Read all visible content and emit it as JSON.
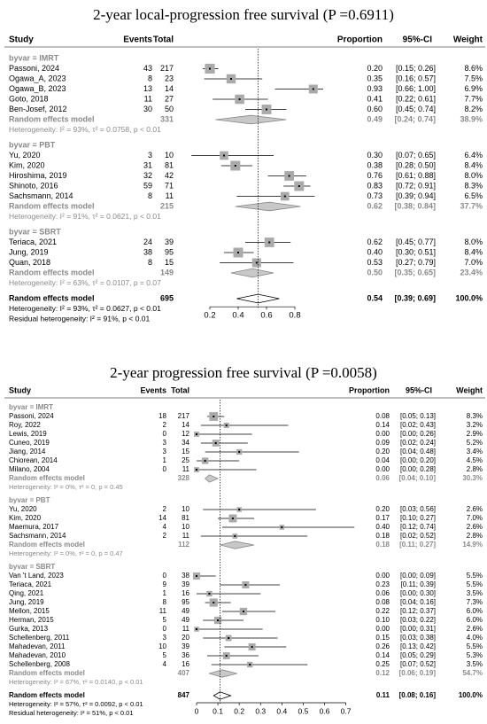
{
  "chart_data": [
    {
      "type": "forest",
      "title": "2-year local-progression free survival (P =0.6911)",
      "columns": [
        "Study",
        "Events",
        "Total",
        "Proportion",
        "95%-CI",
        "Weight"
      ],
      "xlim": [
        0,
        1
      ],
      "xticks": [
        0.2,
        0.4,
        0.6,
        0.8
      ],
      "groups": [
        {
          "label": "byvar = IMRT",
          "studies": [
            {
              "study": "Passoni, 2024",
              "events": 43,
              "total": 217,
              "p": 0.2,
              "p_label": "0.20",
              "lo": 0.15,
              "hi": 0.26,
              "ci_label": "[0.15; 0.26]",
              "weight": 8.6,
              "weight_label": "8.6%"
            },
            {
              "study": "Ogawa_A, 2023",
              "events": 8,
              "total": 23,
              "p": 0.35,
              "p_label": "0.35",
              "lo": 0.16,
              "hi": 0.57,
              "ci_label": "[0.16; 0.57]",
              "weight": 7.5,
              "weight_label": "7.5%"
            },
            {
              "study": "Ogawa_B, 2023",
              "events": 13,
              "total": 14,
              "p": 0.93,
              "p_label": "0.93",
              "lo": 0.66,
              "hi": 1.0,
              "ci_label": "[0.66; 1.00]",
              "weight": 6.9,
              "weight_label": "6.9%"
            },
            {
              "study": "Goto, 2018",
              "events": 11,
              "total": 27,
              "p": 0.41,
              "p_label": "0.41",
              "lo": 0.22,
              "hi": 0.61,
              "ci_label": "[0.22; 0.61]",
              "weight": 7.7,
              "weight_label": "7.7%"
            },
            {
              "study": "Ben-Josef, 2012",
              "events": 30,
              "total": 50,
              "p": 0.6,
              "p_label": "0.60",
              "lo": 0.45,
              "hi": 0.74,
              "ci_label": "[0.45; 0.74]",
              "weight": 8.2,
              "weight_label": "8.2%"
            }
          ],
          "summary": {
            "name": "Random effects model",
            "total": 331,
            "p": 0.49,
            "p_label": "0.49",
            "lo": 0.24,
            "hi": 0.74,
            "ci_label": "[0.24; 0.74]",
            "weight": 38.9,
            "weight_label": "38.9%"
          },
          "heterogeneity": "Heterogeneity: I² = 93%, τ² = 0.0758, p < 0.01"
        },
        {
          "label": "byvar = PBT",
          "studies": [
            {
              "study": "Yu, 2020",
              "events": 3,
              "total": 10,
              "p": 0.3,
              "p_label": "0.30",
              "lo": 0.07,
              "hi": 0.65,
              "ci_label": "[0.07; 0.65]",
              "weight": 6.4,
              "weight_label": "6.4%"
            },
            {
              "study": "Kim, 2020",
              "events": 31,
              "total": 81,
              "p": 0.38,
              "p_label": "0.38",
              "lo": 0.28,
              "hi": 0.5,
              "ci_label": "[0.28; 0.50]",
              "weight": 8.4,
              "weight_label": "8.4%"
            },
            {
              "study": "Hiroshima, 2019",
              "events": 32,
              "total": 42,
              "p": 0.76,
              "p_label": "0.76",
              "lo": 0.61,
              "hi": 0.88,
              "ci_label": "[0.61; 0.88]",
              "weight": 8.0,
              "weight_label": "8.0%"
            },
            {
              "study": "Shinoto, 2016",
              "events": 59,
              "total": 71,
              "p": 0.83,
              "p_label": "0.83",
              "lo": 0.72,
              "hi": 0.91,
              "ci_label": "[0.72; 0.91]",
              "weight": 8.3,
              "weight_label": "8.3%"
            },
            {
              "study": "Sachsmann, 2014",
              "events": 8,
              "total": 11,
              "p": 0.73,
              "p_label": "0.73",
              "lo": 0.39,
              "hi": 0.94,
              "ci_label": "[0.39; 0.94]",
              "weight": 6.5,
              "weight_label": "6.5%"
            }
          ],
          "summary": {
            "name": "Random effects model",
            "total": 215,
            "p": 0.62,
            "p_label": "0.62",
            "lo": 0.38,
            "hi": 0.84,
            "ci_label": "[0.38; 0.84]",
            "weight": 37.7,
            "weight_label": "37.7%"
          },
          "heterogeneity": "Heterogeneity: I² = 91%, τ² = 0.0621, p < 0.01"
        },
        {
          "label": "byvar = SBRT",
          "studies": [
            {
              "study": "Teriaca, 2021",
              "events": 24,
              "total": 39,
              "p": 0.62,
              "p_label": "0.62",
              "lo": 0.45,
              "hi": 0.77,
              "ci_label": "[0.45; 0.77]",
              "weight": 8.0,
              "weight_label": "8.0%"
            },
            {
              "study": "Jung, 2019",
              "events": 38,
              "total": 95,
              "p": 0.4,
              "p_label": "0.40",
              "lo": 0.3,
              "hi": 0.51,
              "ci_label": "[0.30; 0.51]",
              "weight": 8.4,
              "weight_label": "8.4%"
            },
            {
              "study": "Quan, 2018",
              "events": 8,
              "total": 15,
              "p": 0.53,
              "p_label": "0.53",
              "lo": 0.27,
              "hi": 0.79,
              "ci_label": "[0.27; 0.79]",
              "weight": 7.0,
              "weight_label": "7.0%"
            }
          ],
          "summary": {
            "name": "Random effects model",
            "total": 149,
            "p": 0.5,
            "p_label": "0.50",
            "lo": 0.35,
            "hi": 0.65,
            "ci_label": "[0.35; 0.65]",
            "weight": 23.4,
            "weight_label": "23.4%"
          },
          "heterogeneity": "Heterogeneity: I² = 63%, τ² = 0.0107, p = 0.07"
        }
      ],
      "overall": {
        "name": "Random effects model",
        "total": 695,
        "p": 0.54,
        "p_label": "0.54",
        "lo": 0.39,
        "hi": 0.69,
        "ci_label": "[0.39; 0.69]",
        "weight": 100.0,
        "weight_label": "100.0%"
      },
      "overall_heterogeneity": "Heterogeneity: I² = 93%, τ² = 0.0627, p < 0.01",
      "residual_heterogeneity": "Residual heterogeneity: I² = 91%, p < 0.01"
    },
    {
      "type": "forest",
      "title": "2-year progression free survival (P =0.0058)",
      "columns": [
        "Study",
        "Events",
        "Total",
        "Proportion",
        "95%-CI",
        "Weight"
      ],
      "xlim": [
        0,
        0.7
      ],
      "xticks": [
        0,
        0.1,
        0.2,
        0.3,
        0.4,
        0.5,
        0.6,
        0.7
      ],
      "groups": [
        {
          "label": "byvar = IMRT",
          "studies": [
            {
              "study": "Passoni, 2024",
              "events": 18,
              "total": 217,
              "p": 0.08,
              "p_label": "0.08",
              "lo": 0.05,
              "hi": 0.13,
              "ci_label": "[0.05; 0.13]",
              "weight": 8.3,
              "weight_label": "8.3%"
            },
            {
              "study": "Roy, 2022",
              "events": 2,
              "total": 14,
              "p": 0.14,
              "p_label": "0.14",
              "lo": 0.02,
              "hi": 0.43,
              "ci_label": "[0.02; 0.43]",
              "weight": 3.2,
              "weight_label": "3.2%"
            },
            {
              "study": "Lewis, 2019",
              "events": 0,
              "total": 12,
              "p": 0.0,
              "p_label": "0.00",
              "lo": 0.0,
              "hi": 0.26,
              "ci_label": "[0.00; 0.26]",
              "weight": 2.9,
              "weight_label": "2.9%"
            },
            {
              "study": "Cuneo, 2019",
              "events": 3,
              "total": 34,
              "p": 0.09,
              "p_label": "0.09",
              "lo": 0.02,
              "hi": 0.24,
              "ci_label": "[0.02; 0.24]",
              "weight": 5.2,
              "weight_label": "5.2%"
            },
            {
              "study": "Jiang, 2014",
              "events": 3,
              "total": 15,
              "p": 0.2,
              "p_label": "0.20",
              "lo": 0.04,
              "hi": 0.48,
              "ci_label": "[0.04; 0.48]",
              "weight": 3.4,
              "weight_label": "3.4%"
            },
            {
              "study": "Chiorean, 2014",
              "events": 1,
              "total": 25,
              "p": 0.04,
              "p_label": "0.04",
              "lo": 0.0,
              "hi": 0.2,
              "ci_label": "[0.00; 0.20]",
              "weight": 4.5,
              "weight_label": "4.5%"
            },
            {
              "study": "Milano, 2004",
              "events": 0,
              "total": 11,
              "p": 0.0,
              "p_label": "0.00",
              "lo": 0.0,
              "hi": 0.28,
              "ci_label": "[0.00; 0.28]",
              "weight": 2.8,
              "weight_label": "2.8%"
            }
          ],
          "summary": {
            "name": "Random effects model",
            "total": 328,
            "p": 0.06,
            "p_label": "0.06",
            "lo": 0.04,
            "hi": 0.1,
            "ci_label": "[0.04; 0.10]",
            "weight": 30.3,
            "weight_label": "30.3%"
          },
          "heterogeneity": "Heterogeneity: I² = 0%, τ² = 0, p = 0.45"
        },
        {
          "label": "byvar = PBT",
          "studies": [
            {
              "study": "Yu, 2020",
              "events": 2,
              "total": 10,
              "p": 0.2,
              "p_label": "0.20",
              "lo": 0.03,
              "hi": 0.56,
              "ci_label": "[0.03; 0.56]",
              "weight": 2.6,
              "weight_label": "2.6%"
            },
            {
              "study": "Kim, 2020",
              "events": 14,
              "total": 81,
              "p": 0.17,
              "p_label": "0.17",
              "lo": 0.1,
              "hi": 0.27,
              "ci_label": "[0.10; 0.27]",
              "weight": 7.0,
              "weight_label": "7.0%"
            },
            {
              "study": "Maemura, 2017",
              "events": 4,
              "total": 10,
              "p": 0.4,
              "p_label": "0.40",
              "lo": 0.12,
              "hi": 0.74,
              "ci_label": "[0.12; 0.74]",
              "weight": 2.6,
              "weight_label": "2.6%"
            },
            {
              "study": "Sachsmann, 2014",
              "events": 2,
              "total": 11,
              "p": 0.18,
              "p_label": "0.18",
              "lo": 0.02,
              "hi": 0.52,
              "ci_label": "[0.02; 0.52]",
              "weight": 2.8,
              "weight_label": "2.8%"
            }
          ],
          "summary": {
            "name": "Random effects model",
            "total": 112,
            "p": 0.18,
            "p_label": "0.18",
            "lo": 0.11,
            "hi": 0.27,
            "ci_label": "[0.11; 0.27]",
            "weight": 14.9,
            "weight_label": "14.9%"
          },
          "heterogeneity": "Heterogeneity: I² = 0%, τ² = 0, p = 0.47"
        },
        {
          "label": "byvar = SBRT",
          "studies": [
            {
              "study": "Van 't Land, 2023",
              "events": 0,
              "total": 38,
              "p": 0.0,
              "p_label": "0.00",
              "lo": 0.0,
              "hi": 0.09,
              "ci_label": "[0.00; 0.09]",
              "weight": 5.5,
              "weight_label": "5.5%"
            },
            {
              "study": "Teriaca, 2021",
              "events": 9,
              "total": 39,
              "p": 0.23,
              "p_label": "0.23",
              "lo": 0.11,
              "hi": 0.39,
              "ci_label": "[0.11; 0.39]",
              "weight": 5.5,
              "weight_label": "5.5%"
            },
            {
              "study": "Qing, 2021",
              "events": 1,
              "total": 16,
              "p": 0.06,
              "p_label": "0.06",
              "lo": 0.0,
              "hi": 0.3,
              "ci_label": "[0.00; 0.30]",
              "weight": 3.5,
              "weight_label": "3.5%"
            },
            {
              "study": "Jung, 2019",
              "events": 8,
              "total": 95,
              "p": 0.08,
              "p_label": "0.08",
              "lo": 0.04,
              "hi": 0.16,
              "ci_label": "[0.04; 0.16]",
              "weight": 7.3,
              "weight_label": "7.3%"
            },
            {
              "study": "Mellon, 2015",
              "events": 11,
              "total": 49,
              "p": 0.22,
              "p_label": "0.22",
              "lo": 0.12,
              "hi": 0.37,
              "ci_label": "[0.12; 0.37]",
              "weight": 6.0,
              "weight_label": "6.0%"
            },
            {
              "study": "Herman, 2015",
              "events": 5,
              "total": 49,
              "p": 0.1,
              "p_label": "0.10",
              "lo": 0.03,
              "hi": 0.22,
              "ci_label": "[0.03; 0.22]",
              "weight": 6.0,
              "weight_label": "6.0%"
            },
            {
              "study": "Gurka, 2013",
              "events": 0,
              "total": 11,
              "p": 0.0,
              "p_label": "0.00",
              "lo": 0.0,
              "hi": 0.31,
              "ci_label": "[0.00; 0.31]",
              "weight": 2.6,
              "weight_label": "2.6%"
            },
            {
              "study": "Schellenberg, 2011",
              "events": 3,
              "total": 20,
              "p": 0.15,
              "p_label": "0.15",
              "lo": 0.03,
              "hi": 0.38,
              "ci_label": "[0.03; 0.38]",
              "weight": 4.0,
              "weight_label": "4.0%"
            },
            {
              "study": "Mahadevan, 2011",
              "events": 10,
              "total": 39,
              "p": 0.26,
              "p_label": "0.26",
              "lo": 0.13,
              "hi": 0.42,
              "ci_label": "[0.13; 0.42]",
              "weight": 5.5,
              "weight_label": "5.5%"
            },
            {
              "study": "Mahadevan, 2010",
              "events": 5,
              "total": 36,
              "p": 0.14,
              "p_label": "0.14",
              "lo": 0.05,
              "hi": 0.29,
              "ci_label": "[0.05; 0.29]",
              "weight": 5.3,
              "weight_label": "5.3%"
            },
            {
              "study": "Schellenberg, 2008",
              "events": 4,
              "total": 16,
              "p": 0.25,
              "p_label": "0.25",
              "lo": 0.07,
              "hi": 0.52,
              "ci_label": "[0.07; 0.52]",
              "weight": 3.5,
              "weight_label": "3.5%"
            }
          ],
          "summary": {
            "name": "Random effects model",
            "total": 407,
            "p": 0.12,
            "p_label": "0.12",
            "lo": 0.06,
            "hi": 0.19,
            "ci_label": "[0.06; 0.19]",
            "weight": 54.7,
            "weight_label": "54.7%"
          },
          "heterogeneity": "Heterogeneity: I² = 67%, τ² = 0.0140, p < 0.01"
        }
      ],
      "overall": {
        "name": "Random effects model",
        "total": 847,
        "p": 0.11,
        "p_label": "0.11",
        "lo": 0.08,
        "hi": 0.16,
        "ci_label": "[0.08; 0.16]",
        "weight": 100.0,
        "weight_label": "100.0%"
      },
      "overall_heterogeneity": "Heterogeneity: I² = 57%, τ² = 0.0092, p < 0.01",
      "residual_heterogeneity": "Residual heterogeneity: I² = 51%, p < 0.01"
    }
  ]
}
